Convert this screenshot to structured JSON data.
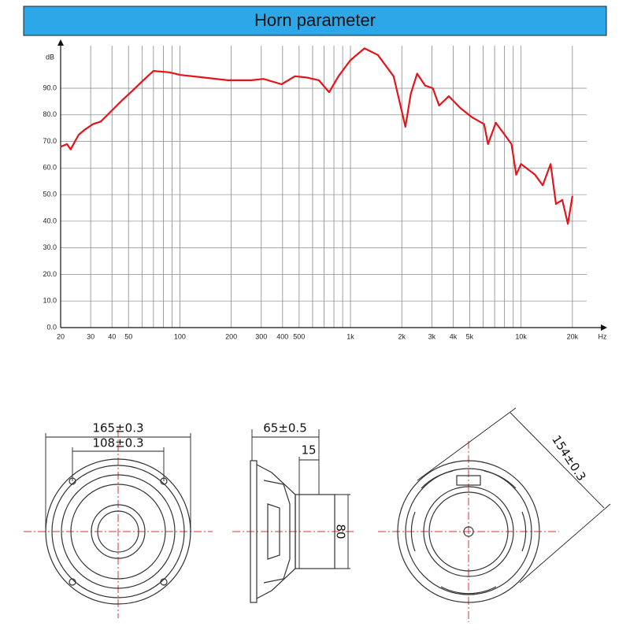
{
  "chart_data": {
    "type": "line",
    "title": "Horn parameter",
    "ylabel": "dB",
    "xlabel": "Hz",
    "log_x": true,
    "grid": true,
    "color": "#e3141b",
    "xlim": [
      20,
      30000
    ],
    "ylim": [
      0,
      106
    ],
    "xticks": [
      20,
      30,
      40,
      50,
      100,
      200,
      300,
      400,
      500,
      {
        "value": 1000,
        "label": "1k"
      },
      {
        "value": 2000,
        "label": "2k"
      },
      {
        "value": 3000,
        "label": "3k"
      },
      {
        "value": 4000,
        "label": "4k"
      },
      {
        "value": 5000,
        "label": "5k"
      },
      {
        "value": 10000,
        "label": "10k"
      },
      {
        "value": 20000,
        "label": "20k"
      }
    ],
    "xgrid": [
      60,
      70,
      80,
      90,
      600,
      700,
      800,
      900,
      6000,
      7000,
      8000,
      9000
    ],
    "yticks": [
      {
        "value": 0,
        "label": "0.0"
      },
      {
        "value": 10,
        "label": "10.0"
      },
      {
        "value": 20,
        "label": "20.0"
      },
      {
        "value": 30,
        "label": "30.0"
      },
      {
        "value": 40,
        "label": "40.0"
      },
      {
        "value": 50,
        "label": "50.0"
      },
      {
        "value": 60,
        "label": "60.0"
      },
      {
        "value": 70,
        "label": "70.0"
      },
      {
        "value": 80,
        "label": "80.0"
      },
      {
        "value": 90,
        "label": "90.0"
      }
    ],
    "x": [
      20,
      21.8,
      22.9,
      25.5,
      27.8,
      31,
      34.4,
      39.1,
      45.9,
      52.6,
      59.9,
      70,
      86.5,
      101,
      139,
      191,
      263,
      309,
      395,
      473,
      556,
      653,
      750,
      851,
      998,
      1208,
      1447,
      1790,
      2100,
      2260,
      2460,
      2740,
      3040,
      3310,
      3770,
      4420,
      5180,
      6070,
      6400,
      7110,
      7920,
      8790,
      9370,
      9990,
      12070,
      13400,
      14900,
      16030,
      17450,
      18810,
      20000
    ],
    "values": [
      68,
      69,
      67,
      72.5,
      74.5,
      76.5,
      77.5,
      81,
      85.5,
      89,
      92.5,
      96.5,
      96,
      95,
      94,
      93,
      93,
      93.5,
      91.5,
      94.5,
      94,
      93,
      88.5,
      94.5,
      100.5,
      105,
      102.5,
      94.5,
      75.5,
      88,
      95.5,
      91,
      90,
      83.5,
      87,
      82.5,
      79,
      76.5,
      69,
      77,
      73,
      69,
      57.5,
      61.5,
      57.5,
      53.5,
      61.5,
      46.5,
      48,
      39,
      49.5
    ]
  },
  "drawings": {
    "front": {
      "outer": "165±0.3",
      "inner": "108±0.3"
    },
    "side": {
      "depth": "65±0.5",
      "magnet_depth": "15",
      "magnet_diameter": "80"
    },
    "back": {
      "diagonal": "154±0.3"
    }
  }
}
